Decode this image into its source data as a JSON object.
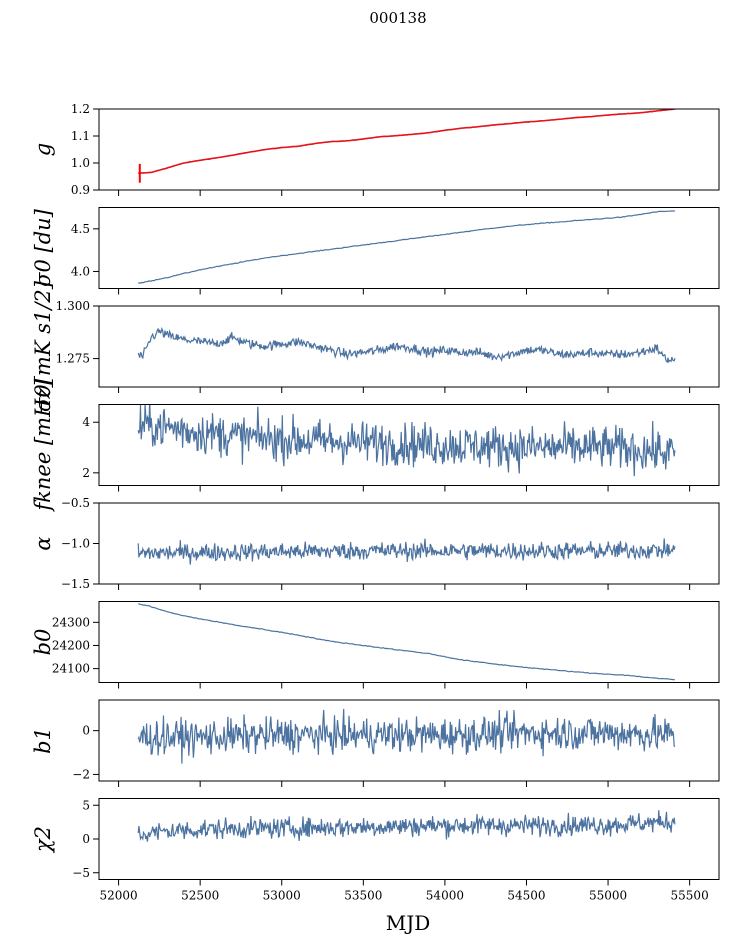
{
  "figure": {
    "title": "000138",
    "xlabel": "MJD",
    "x_ticks": [
      52000,
      52500,
      53000,
      53500,
      54000,
      54500,
      55000,
      55500
    ],
    "xlim": [
      51880,
      55680
    ],
    "series_color": "#4c72a0",
    "fit_color": "#ff0000"
  },
  "chart_data": [
    {
      "type": "line",
      "ylabel": "g",
      "ylim": [
        0.9,
        1.2
      ],
      "y_ticks": [
        0.9,
        1.0,
        1.1,
        1.2
      ],
      "y_tick_labels": [
        "0.9",
        "1.0",
        "1.1",
        "1.2"
      ],
      "x": [
        52120,
        52200,
        52300,
        52400,
        52500,
        52600,
        52700,
        52800,
        52900,
        53000,
        53100,
        53200,
        53300,
        53400,
        53500,
        53600,
        53700,
        53800,
        53900,
        54000,
        54100,
        54200,
        54300,
        54400,
        54500,
        54600,
        54700,
        54800,
        54900,
        55000,
        55100,
        55200,
        55300,
        55410
      ],
      "values": [
        0.962,
        0.965,
        0.982,
        1.0,
        1.01,
        1.019,
        1.029,
        1.04,
        1.05,
        1.057,
        1.062,
        1.072,
        1.079,
        1.082,
        1.089,
        1.097,
        1.101,
        1.106,
        1.112,
        1.121,
        1.129,
        1.134,
        1.141,
        1.146,
        1.152,
        1.156,
        1.162,
        1.168,
        1.172,
        1.178,
        1.182,
        1.186,
        1.193,
        1.2
      ],
      "fit": true
    },
    {
      "type": "line",
      "ylabel": "σ0 [du]",
      "ylim": [
        3.8,
        4.75
      ],
      "y_ticks": [
        4.0,
        4.5
      ],
      "y_tick_labels": [
        "4.0",
        "4.5"
      ],
      "x": [
        52120,
        52300,
        52500,
        52700,
        52900,
        53100,
        53300,
        53500,
        53700,
        53900,
        54100,
        54300,
        54500,
        54700,
        54900,
        55100,
        55300,
        55410
      ],
      "values": [
        3.86,
        3.93,
        4.02,
        4.09,
        4.16,
        4.21,
        4.26,
        4.31,
        4.36,
        4.41,
        4.46,
        4.51,
        4.55,
        4.58,
        4.61,
        4.64,
        4.7,
        4.71
      ]
    },
    {
      "type": "line",
      "ylabel": "σ0[mK s1/2]",
      "ylim": [
        1.2615,
        1.3
      ],
      "y_ticks": [
        1.275,
        1.3
      ],
      "y_tick_labels": [
        "1.275",
        "1.300"
      ],
      "x": [
        52120,
        52150,
        52200,
        52250,
        52300,
        52400,
        52500,
        52600,
        52700,
        52800,
        52900,
        53000,
        53100,
        53200,
        53300,
        53400,
        53500,
        53600,
        53700,
        53800,
        53900,
        54000,
        54100,
        54200,
        54300,
        54400,
        54500,
        54600,
        54700,
        54800,
        54900,
        55000,
        55100,
        55200,
        55300,
        55350,
        55410
      ],
      "values": [
        1.2765,
        1.276,
        1.285,
        1.288,
        1.286,
        1.284,
        1.283,
        1.282,
        1.285,
        1.282,
        1.281,
        1.282,
        1.283,
        1.281,
        1.279,
        1.277,
        1.278,
        1.279,
        1.281,
        1.28,
        1.278,
        1.279,
        1.278,
        1.278,
        1.276,
        1.277,
        1.279,
        1.279,
        1.277,
        1.277,
        1.278,
        1.277,
        1.277,
        1.278,
        1.28,
        1.275,
        1.274
      ],
      "noise": 0.0011
    },
    {
      "type": "line",
      "ylabel": "fknee [mHz]",
      "ylim": [
        1.5,
        4.7
      ],
      "y_ticks": [
        2,
        4
      ],
      "y_tick_labels": [
        "2",
        "4"
      ],
      "x": [
        52120,
        52300,
        52500,
        52800,
        53100,
        53500,
        54000,
        54500,
        55000,
        55410
      ],
      "values": [
        3.9,
        3.8,
        3.6,
        3.4,
        3.3,
        3.2,
        3.1,
        3.0,
        3.0,
        2.8
      ],
      "noise": 0.42
    },
    {
      "type": "line",
      "ylabel": "α",
      "ylim": [
        -1.5,
        -0.5
      ],
      "y_ticks": [
        -1.5,
        -1.0,
        -0.5
      ],
      "y_tick_labels": [
        "−1.5",
        "−1.0",
        "−0.5"
      ],
      "x": [
        52120,
        52500,
        53000,
        53500,
        54000,
        54500,
        55000,
        55410
      ],
      "values": [
        -1.12,
        -1.11,
        -1.1,
        -1.09,
        -1.09,
        -1.09,
        -1.09,
        -1.08
      ],
      "noise": 0.055
    },
    {
      "type": "line",
      "ylabel": "b0",
      "ylim": [
        24040,
        24390
      ],
      "y_ticks": [
        24100,
        24200,
        24300
      ],
      "y_tick_labels": [
        "24100",
        "24200",
        "24300"
      ],
      "x": [
        52120,
        52200,
        52300,
        52400,
        52500,
        52700,
        52900,
        53100,
        53300,
        53500,
        53700,
        53900,
        54100,
        54300,
        54500,
        54700,
        54900,
        55100,
        55300,
        55410
      ],
      "values": [
        24380,
        24368,
        24345,
        24328,
        24315,
        24290,
        24268,
        24245,
        24218,
        24200,
        24182,
        24165,
        24138,
        24120,
        24105,
        24092,
        24080,
        24072,
        24058,
        24052
      ]
    },
    {
      "type": "line",
      "ylabel": "b1",
      "ylim": [
        -2.3,
        1.4
      ],
      "y_ticks": [
        -2,
        0
      ],
      "y_tick_labels": [
        "−2",
        "0"
      ],
      "x": [
        52120,
        52500,
        53000,
        53500,
        54000,
        54500,
        55000,
        55410
      ],
      "values": [
        -0.3,
        -0.3,
        -0.2,
        -0.2,
        -0.2,
        -0.1,
        -0.1,
        -0.2
      ],
      "noise": 0.4
    },
    {
      "type": "line",
      "ylabel": "χ2",
      "ylim": [
        -6.0,
        6.0
      ],
      "y_ticks": [
        -5,
        0,
        5
      ],
      "y_tick_labels": [
        "−5",
        "0",
        "5"
      ],
      "x": [
        52120,
        52300,
        52600,
        53000,
        53500,
        54000,
        54500,
        55000,
        55410
      ],
      "values": [
        0.6,
        1.2,
        1.5,
        1.6,
        1.8,
        2.0,
        2.0,
        2.1,
        2.6
      ],
      "noise": 0.75
    }
  ]
}
